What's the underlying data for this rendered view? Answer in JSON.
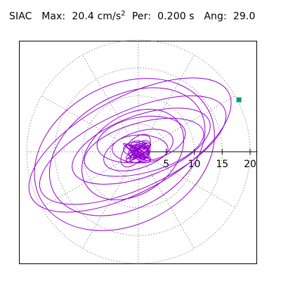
{
  "header": {
    "station": "SIAC",
    "max_label": "Max:",
    "max_value": "20.4",
    "max_unit": "cm/s",
    "max_unit_exp": "2",
    "per_label": "Per:",
    "per_value": "0.200 s",
    "ang_label": "Ang:",
    "ang_value": "29.0"
  },
  "chart_data": {
    "type": "line",
    "title": "SIAC  Max:  20.4 cm/s2  Per:  0.200 s  Ang:  29.0",
    "xlabel": "",
    "ylabel": "",
    "radial_ticks": [
      5,
      10,
      15,
      20
    ],
    "radial_tick_labels": [
      "5",
      "10",
      "15",
      "20"
    ],
    "xlim": [
      -22,
      20.5
    ],
    "ylim": [
      -20,
      20
    ],
    "grid": true,
    "grid_style": "polar, dotted",
    "trace_color": "#9400d3",
    "marker_color": "#009e73",
    "peak_point": {
      "x": 18.0,
      "y": 9.3
    },
    "orbit_ellipses": [
      {
        "a": 20.0,
        "b": 8.5,
        "rot": 28,
        "cx": -1.5,
        "cy": 1.2
      },
      {
        "a": 18.0,
        "b": 7.0,
        "rot": 24,
        "cx": -1.0,
        "cy": 0.3
      },
      {
        "a": 17.0,
        "b": 12.5,
        "rot": 28,
        "cx": -2.5,
        "cy": -0.5
      },
      {
        "a": 15.0,
        "b": 10.0,
        "rot": 30,
        "cx": -2.0,
        "cy": 0.0
      },
      {
        "a": 13.0,
        "b": 5.5,
        "rot": 20,
        "cx": 0.5,
        "cy": 1.0
      },
      {
        "a": 11.0,
        "b": 4.5,
        "rot": 15,
        "cx": 1.0,
        "cy": 0.8
      },
      {
        "a": 10.0,
        "b": 7.0,
        "rot": 35,
        "cx": -1.0,
        "cy": -0.5
      },
      {
        "a": 8.0,
        "b": 4.0,
        "rot": 10,
        "cx": 0.5,
        "cy": 2.2
      },
      {
        "a": 6.5,
        "b": 3.2,
        "rot": 20,
        "cx": 0.0,
        "cy": 0.3
      },
      {
        "a": 5.0,
        "b": 2.5,
        "rot": 0,
        "cx": 0.3,
        "cy": 0.5
      },
      {
        "a": 3.5,
        "b": 1.8,
        "rot": 50,
        "cx": -0.5,
        "cy": 0.2
      }
    ]
  }
}
